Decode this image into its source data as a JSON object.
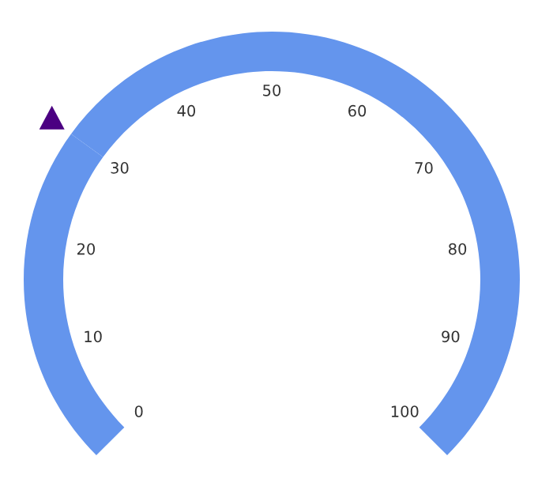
{
  "chart_data": {
    "type": "donut",
    "categories": [
      null,
      null
    ],
    "values": [
      30,
      70
    ],
    "colors": [
      "#6495ed",
      "#6495ed"
    ],
    "annotations": [
      "0",
      "10",
      "20",
      "30",
      "40",
      "50",
      "60",
      "70",
      "80",
      "90",
      "100"
    ]
  }
}
